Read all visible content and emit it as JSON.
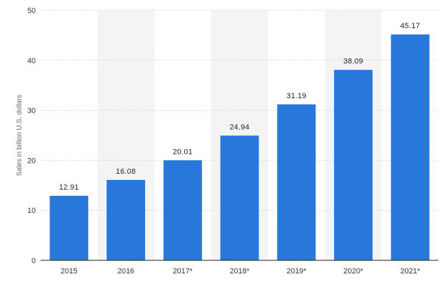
{
  "chart_data": {
    "type": "bar",
    "categories": [
      "2015",
      "2016",
      "2017*",
      "2018*",
      "2019*",
      "2020*",
      "2021*"
    ],
    "values": [
      12.91,
      16.08,
      20.01,
      24.94,
      31.19,
      38.09,
      45.17
    ],
    "value_labels": [
      "12.91",
      "16.08",
      "20.01",
      "24.94",
      "31.19",
      "38.09",
      "45.17"
    ],
    "title": "",
    "xlabel": "",
    "ylabel": "Sales in billion U.S. dollars",
    "ylim": [
      0,
      50
    ],
    "yticks": [
      "0",
      "10",
      "20",
      "30",
      "40",
      "50"
    ],
    "grid": true,
    "bar_color": "#2878dc",
    "band_color": "#f4f4f4",
    "shaded_categories": [
      "2016",
      "2018*",
      "2020*"
    ]
  }
}
